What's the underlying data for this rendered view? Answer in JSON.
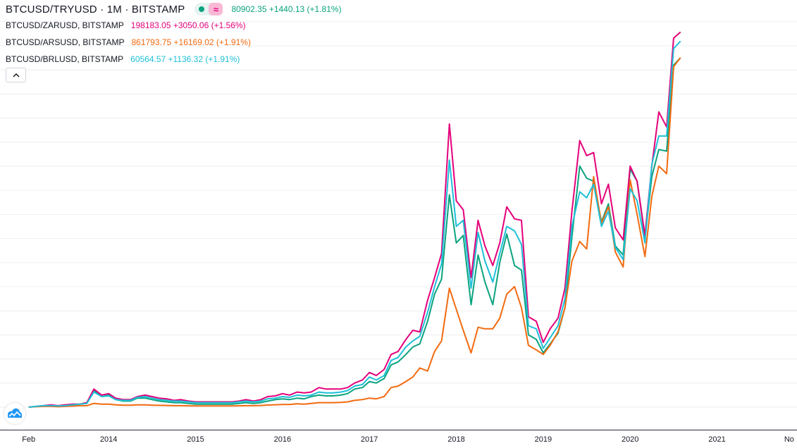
{
  "legend": {
    "main": {
      "symbol": "BTCUSD/TRYUSD · 1M · BITSTAMP",
      "value": "80902.35 +1440.13 (+1.81%)",
      "color": "#0aa37f"
    },
    "rows": [
      {
        "symbol": "BTCUSD/ZARUSD, BITSTAMP",
        "value": "198183.05 +3050.06 (+1.56%)",
        "color": "#e3007a"
      },
      {
        "symbol": "BTCUSD/ARSUSD, BITSTAMP",
        "value": "861793.75 +16169.02 (+1.91%)",
        "color": "#f26a10"
      },
      {
        "symbol": "BTCUSD/BRLUSD, BITSTAMP",
        "value": "60564.57 +1136.32 (+1.91%)",
        "color": "#1ec0d8"
      }
    ],
    "collapse_icon": "chevron-up-icon",
    "logo_icon": "tradingview-logo-icon"
  },
  "chart_data": {
    "type": "line",
    "x_ticks": [
      "Feb",
      "2014",
      "2015",
      "2016",
      "2017",
      "2018",
      "2019",
      "2020",
      "2021",
      "No"
    ],
    "grid": "horizontal",
    "x": [
      2013.08,
      2013.17,
      2013.25,
      2013.33,
      2013.42,
      2013.5,
      2013.58,
      2013.67,
      2013.75,
      2013.83,
      2013.92,
      2014.0,
      2014.08,
      2014.17,
      2014.25,
      2014.33,
      2014.42,
      2014.5,
      2014.58,
      2014.67,
      2014.75,
      2014.83,
      2014.92,
      2015.0,
      2015.08,
      2015.17,
      2015.25,
      2015.33,
      2015.42,
      2015.5,
      2015.58,
      2015.67,
      2015.75,
      2015.83,
      2015.92,
      2016.0,
      2016.08,
      2016.17,
      2016.25,
      2016.33,
      2016.42,
      2016.5,
      2016.58,
      2016.67,
      2016.75,
      2016.83,
      2016.92,
      2017.0,
      2017.08,
      2017.17,
      2017.25,
      2017.33,
      2017.42,
      2017.5,
      2017.58,
      2017.67,
      2017.75,
      2017.83,
      2017.92,
      2018.0,
      2018.08,
      2018.17,
      2018.25,
      2018.33,
      2018.42,
      2018.5,
      2018.58,
      2018.67,
      2018.75,
      2018.83,
      2018.92,
      2019.0,
      2019.08,
      2019.17,
      2019.25,
      2019.33,
      2019.42,
      2019.5,
      2019.58,
      2019.67,
      2019.75,
      2019.83,
      2019.92,
      2020.0,
      2020.08,
      2020.17,
      2020.25,
      2020.33,
      2020.42,
      2020.5,
      2020.58
    ],
    "series": [
      {
        "color": "#0aa37f",
        "values": [
          0,
          0.5,
          1,
          1,
          0.5,
          1,
          1,
          2,
          3,
          11,
          7,
          8,
          5,
          4,
          4,
          6,
          6,
          5,
          4,
          3.5,
          3,
          3,
          2.5,
          2,
          2,
          2,
          2,
          2,
          2,
          2.5,
          3,
          2.5,
          3,
          4,
          5,
          5.5,
          5,
          6,
          5.5,
          7,
          8,
          7.5,
          7.5,
          8,
          9,
          12,
          13,
          17,
          16,
          19,
          28,
          30,
          35,
          40,
          42,
          57,
          75,
          85,
          141,
          109,
          114,
          68,
          101,
          83,
          68,
          96,
          115,
          94,
          91,
          48,
          45,
          36,
          42,
          49,
          66,
          113,
          160,
          152,
          150,
          123,
          135,
          107,
          101,
          158,
          150,
          112,
          153,
          171,
          170,
          227,
          232
        ]
      },
      {
        "color": "#e3007a",
        "values": [
          0,
          0.5,
          1,
          1.5,
          1,
          1.5,
          2,
          2,
          3,
          12,
          8,
          9,
          6,
          5,
          5,
          7,
          8,
          7,
          6,
          5.5,
          4.5,
          5,
          4,
          3.5,
          3.5,
          3.5,
          3.5,
          3.5,
          3.5,
          4,
          5,
          4,
          5,
          7,
          7.5,
          9,
          8,
          10,
          9.5,
          10,
          13,
          12,
          12,
          12,
          13,
          16,
          18,
          23,
          21,
          25,
          35,
          37,
          45,
          51,
          50,
          71,
          86,
          102,
          188,
          137,
          131,
          86,
          124,
          107,
          94,
          109,
          133,
          125,
          124,
          60,
          57,
          43,
          52,
          59,
          79,
          130,
          177,
          167,
          169,
          135,
          148,
          119,
          111,
          160,
          150,
          114,
          160,
          196,
          186,
          245,
          249
        ]
      },
      {
        "color": "#f26a10",
        "values": [
          0,
          0.3,
          0.5,
          0.5,
          0.3,
          0.5,
          0.7,
          1,
          1,
          2.5,
          2,
          2,
          1.5,
          1.3,
          1.3,
          1.5,
          1.5,
          1.3,
          1.2,
          1.1,
          1,
          1,
          0.9,
          0.8,
          0.8,
          0.8,
          0.8,
          0.8,
          0.8,
          0.9,
          1,
          1,
          1.1,
          1.4,
          1.6,
          1.8,
          1.8,
          2.2,
          2,
          2.5,
          3,
          3,
          3,
          3.2,
          3.5,
          4.5,
          5,
          6,
          5.5,
          7,
          13,
          14,
          17,
          20,
          26,
          24,
          37,
          44,
          79,
          65,
          51,
          36,
          53,
          52,
          52,
          59,
          75,
          80,
          66,
          41,
          38,
          35,
          41,
          50,
          66,
          97,
          110,
          105,
          153,
          122,
          133,
          103,
          93,
          151,
          128,
          100,
          140,
          160,
          155,
          226,
          232
        ]
      },
      {
        "color": "#1ec0d8",
        "values": [
          0,
          0.5,
          1,
          1,
          0.8,
          1,
          1.5,
          2,
          2.5,
          10,
          7,
          7.5,
          5,
          4.5,
          4.5,
          6.5,
          7,
          6,
          5,
          4.5,
          4,
          4,
          3.5,
          3,
          3,
          3,
          3,
          3,
          3,
          3.5,
          4,
          3.5,
          4,
          5.5,
          6,
          7,
          6.5,
          8,
          7.5,
          8,
          10,
          9.5,
          9.5,
          10,
          11,
          14,
          15,
          20,
          18,
          21,
          31,
          33,
          40,
          44,
          47,
          63,
          80,
          95,
          164,
          120,
          124,
          79,
          116,
          97,
          83,
          102,
          120,
          117,
          108,
          54,
          52,
          39,
          46,
          54,
          72,
          120,
          143,
          139,
          148,
          120,
          130,
          106,
          98,
          145,
          137,
          109,
          161,
          180,
          180,
          238,
          243
        ]
      }
    ],
    "ylim": [
      0,
      260
    ],
    "xlim": [
      2012.75,
      2021.92
    ]
  }
}
